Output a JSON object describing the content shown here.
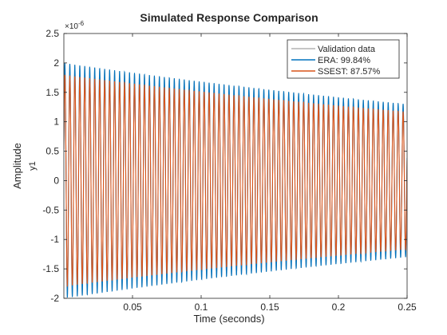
{
  "chart_data": {
    "type": "line",
    "title": "Simulated Response Comparison",
    "xlabel": "Time (seconds)",
    "ylabel": "Amplitude",
    "channel_label": "y1",
    "y_exponent_label": "×10",
    "y_exponent_power": "-6",
    "xlim": [
      0.0,
      0.25
    ],
    "ylim": [
      -2.0,
      2.5
    ],
    "x_ticks": [
      0.05,
      0.1,
      0.15,
      0.2,
      0.25
    ],
    "x_tick_labels": [
      "0.05",
      "0.1",
      "0.15",
      "0.2",
      "0.25"
    ],
    "y_ticks": [
      -2,
      -1.5,
      -1,
      -0.5,
      0,
      0.5,
      1,
      1.5,
      2,
      2.5
    ],
    "y_tick_labels": [
      "-2",
      "-1.5",
      "-1",
      "-0.5",
      "0",
      "0.5",
      "1",
      "1.5",
      "2",
      "2.5"
    ],
    "grid": false,
    "legend_position": "top-right",
    "signal": {
      "duration": 0.25,
      "cycles": 69,
      "initial_amplitude": 2.0,
      "final_amplitude": 1.3
    },
    "series": [
      {
        "name": "Validation data",
        "color": "#b3b3b3",
        "amplitude_scale": 1.0
      },
      {
        "name": "ERA: 99.84%",
        "color": "#0072bd",
        "amplitude_scale": 1.0
      },
      {
        "name": "SSEST: 87.57%",
        "color": "#d95319",
        "amplitude_scale": 0.9
      }
    ]
  }
}
